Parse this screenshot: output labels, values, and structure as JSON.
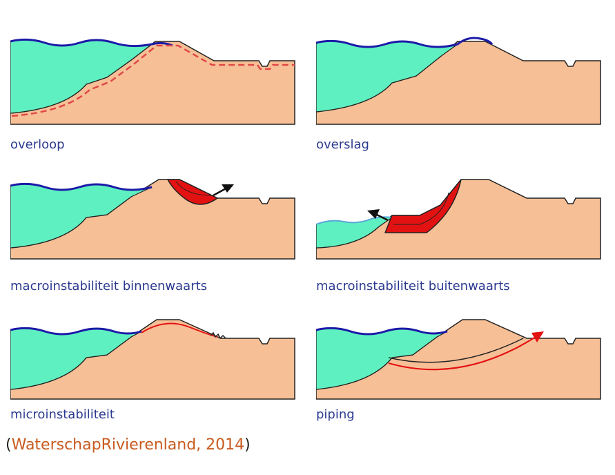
{
  "colors": {
    "water": "#5ef0c0",
    "soil": "#f7bf96",
    "wave_line": "#1c1aa8",
    "outline": "#222222",
    "failure": "#e31212",
    "dashed": "#e04848",
    "caption": "#2b3990",
    "link": "#c85a1e"
  },
  "panels": [
    {
      "id": "overloop",
      "caption": "overloop"
    },
    {
      "id": "overslag",
      "caption": "overslag"
    },
    {
      "id": "macro-binnen",
      "caption": "macroinstabiliteit binnenwaarts"
    },
    {
      "id": "macro-buiten",
      "caption": "macroinstabiliteit buitenwaarts"
    },
    {
      "id": "micro",
      "caption": "microinstabiliteit"
    },
    {
      "id": "piping",
      "caption": "piping"
    }
  ],
  "citation": {
    "open": "(",
    "text": "WaterschapRivierenland, 2014",
    "close": ")"
  }
}
